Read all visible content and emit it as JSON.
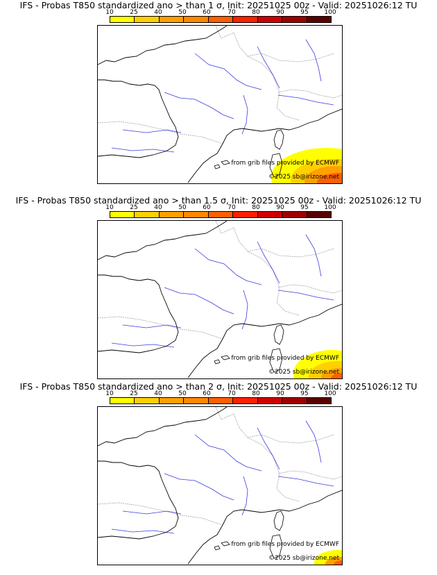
{
  "colorbar": {
    "ticks": [
      "10",
      "25",
      "40",
      "50",
      "60",
      "70",
      "80",
      "90",
      "95",
      "100"
    ],
    "colors": [
      "#ffff00",
      "#ffd000",
      "#ffa000",
      "#ff8800",
      "#ff6000",
      "#ff2000",
      "#d00000",
      "#a00000",
      "#5a0000"
    ]
  },
  "credits": {
    "source": "from grib files provided by ECMWF",
    "copyright": "©2025 sb@irizone.net"
  },
  "panels": [
    {
      "title": "IFS - Probas T850  standardized ano > than 1 σ, Init: 20251025 00z - Valid: 20251026:12 TU",
      "threshold_sigma": 1
    },
    {
      "title": "IFS - Probas T850  standardized ano > than 1.5 σ, Init: 20251025 00z - Valid: 20251026:12 TU",
      "threshold_sigma": 1.5
    },
    {
      "title": "IFS - Probas T850  standardized ano > than 2 σ, Init: 20251025 00z - Valid: 20251026:12 TU",
      "threshold_sigma": 2
    }
  ]
}
